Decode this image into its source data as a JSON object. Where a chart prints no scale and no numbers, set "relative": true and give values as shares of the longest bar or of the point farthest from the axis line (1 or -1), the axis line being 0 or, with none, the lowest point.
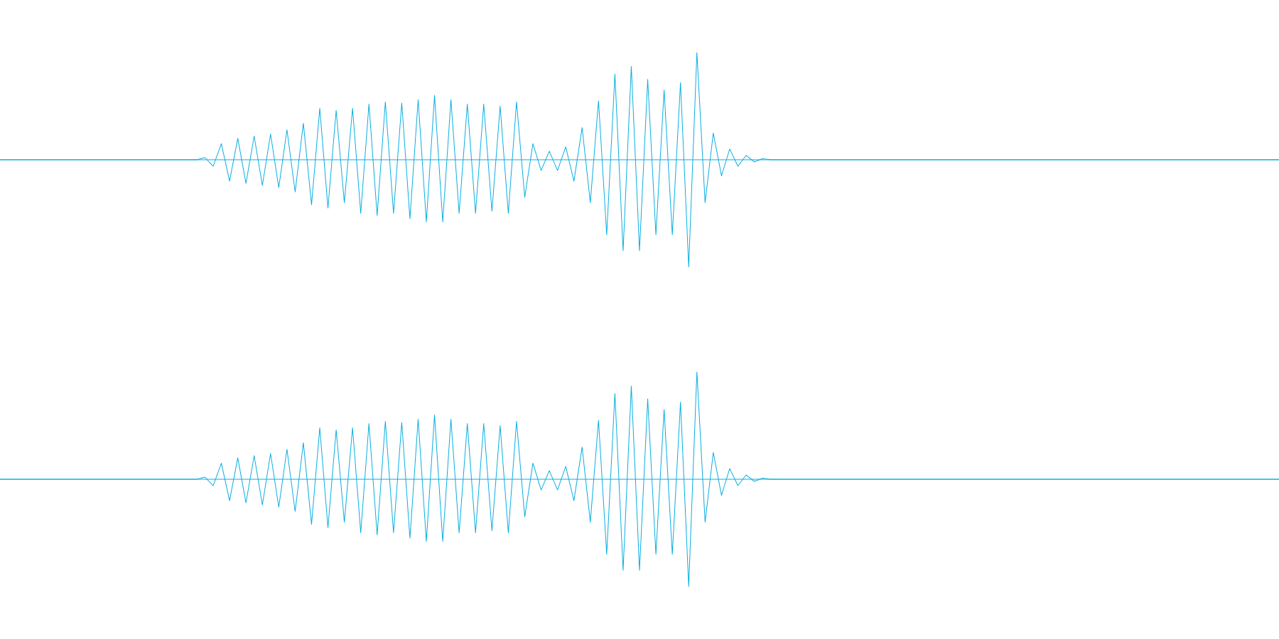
{
  "chart_data": [
    {
      "type": "line",
      "relative": true,
      "categories": [
        null,
        null,
        null,
        null,
        null,
        null,
        null,
        null,
        null,
        null,
        null,
        null,
        null,
        null,
        null,
        null,
        null,
        null,
        null,
        null,
        null,
        null,
        null,
        null,
        null,
        null,
        null,
        null,
        null,
        null,
        null,
        null,
        null,
        null,
        null,
        null,
        null,
        null,
        null,
        null,
        null,
        null,
        null,
        null,
        null,
        null,
        null,
        null,
        null,
        null,
        null,
        null,
        null,
        null,
        null,
        null,
        null,
        null,
        null,
        null,
        null,
        null,
        null,
        null,
        null,
        null,
        null,
        null,
        null,
        null,
        null,
        null,
        null,
        null,
        null,
        null,
        null,
        null,
        null,
        null,
        null,
        null,
        null,
        null,
        null,
        null,
        null,
        null,
        null,
        null,
        null,
        null,
        null,
        null,
        null,
        null,
        null,
        null,
        null,
        null,
        null,
        null,
        null,
        null,
        null,
        null,
        null,
        null,
        null,
        null,
        null,
        null,
        null,
        null,
        null,
        null,
        null,
        null,
        null,
        null,
        null,
        null,
        null,
        null,
        null,
        null,
        null,
        null,
        null,
        null,
        null,
        null,
        null,
        null,
        null,
        null,
        null,
        null,
        null,
        null,
        null,
        null,
        null,
        null,
        null,
        null,
        null,
        null,
        null,
        null,
        null,
        null,
        null,
        null,
        null,
        null,
        null
      ],
      "series": [
        {
          "color": "#08aee2",
          "values": [
            0,
            0,
            0,
            0,
            0,
            0,
            0,
            0,
            0,
            0,
            0,
            0,
            0,
            0,
            0,
            0,
            0,
            0,
            0,
            0,
            0,
            0,
            0,
            0,
            0,
            0.02,
            -0.06,
            0.15,
            -0.2,
            0.2,
            -0.22,
            0.22,
            -0.24,
            0.24,
            -0.26,
            0.28,
            -0.3,
            0.34,
            -0.42,
            0.48,
            -0.45,
            0.46,
            -0.4,
            0.48,
            -0.5,
            0.52,
            -0.52,
            0.54,
            -0.5,
            0.53,
            -0.55,
            0.56,
            -0.58,
            0.6,
            -0.58,
            0.56,
            -0.5,
            0.52,
            -0.5,
            0.52,
            -0.48,
            0.5,
            -0.5,
            0.54,
            -0.35,
            0.15,
            -0.1,
            0.08,
            -0.1,
            0.12,
            -0.2,
            0.3,
            -0.4,
            0.55,
            -0.7,
            0.8,
            -0.85,
            0.87,
            -0.85,
            0.75,
            -0.7,
            0.65,
            -0.7,
            0.72,
            -1.0,
            1.0,
            -0.4,
            0.25,
            -0.15,
            0.1,
            -0.06,
            0.04,
            -0.02,
            0.01,
            0,
            0,
            0,
            0,
            0,
            0,
            0,
            0,
            0,
            0,
            0,
            0,
            0,
            0,
            0,
            0,
            0,
            0,
            0,
            0,
            0,
            0,
            0,
            0,
            0,
            0,
            0,
            0,
            0,
            0,
            0,
            0,
            0,
            0,
            0,
            0,
            0,
            0,
            0,
            0,
            0,
            0,
            0,
            0,
            0,
            0,
            0,
            0,
            0,
            0,
            0,
            0,
            0,
            0,
            0,
            0,
            0,
            0,
            0,
            0,
            0,
            0,
            0
          ]
        }
      ]
    },
    {
      "type": "line",
      "relative": true,
      "categories": [
        null,
        null,
        null,
        null,
        null,
        null,
        null,
        null,
        null,
        null,
        null,
        null,
        null,
        null,
        null,
        null,
        null,
        null,
        null,
        null,
        null,
        null,
        null,
        null,
        null,
        null,
        null,
        null,
        null,
        null,
        null,
        null,
        null,
        null,
        null,
        null,
        null,
        null,
        null,
        null,
        null,
        null,
        null,
        null,
        null,
        null,
        null,
        null,
        null,
        null,
        null,
        null,
        null,
        null,
        null,
        null,
        null,
        null,
        null,
        null,
        null,
        null,
        null,
        null,
        null,
        null,
        null,
        null,
        null,
        null,
        null,
        null,
        null,
        null,
        null,
        null,
        null,
        null,
        null,
        null,
        null,
        null,
        null,
        null,
        null,
        null,
        null,
        null,
        null,
        null,
        null,
        null,
        null,
        null,
        null,
        null,
        null,
        null,
        null,
        null,
        null,
        null,
        null,
        null,
        null,
        null,
        null,
        null,
        null,
        null,
        null,
        null,
        null,
        null,
        null,
        null,
        null,
        null,
        null,
        null,
        null,
        null,
        null,
        null,
        null,
        null,
        null,
        null,
        null,
        null,
        null,
        null,
        null,
        null,
        null,
        null,
        null,
        null,
        null,
        null,
        null,
        null,
        null,
        null,
        null,
        null,
        null,
        null,
        null,
        null,
        null,
        null,
        null,
        null,
        null,
        null,
        null
      ],
      "series": [
        {
          "color": "#08aee2",
          "values": [
            0,
            0,
            0,
            0,
            0,
            0,
            0,
            0,
            0,
            0,
            0,
            0,
            0,
            0,
            0,
            0,
            0,
            0,
            0,
            0,
            0,
            0,
            0,
            0,
            0,
            0.02,
            -0.06,
            0.15,
            -0.2,
            0.2,
            -0.22,
            0.22,
            -0.24,
            0.24,
            -0.26,
            0.28,
            -0.3,
            0.34,
            -0.42,
            0.48,
            -0.45,
            0.46,
            -0.4,
            0.48,
            -0.5,
            0.52,
            -0.52,
            0.54,
            -0.5,
            0.53,
            -0.55,
            0.56,
            -0.58,
            0.6,
            -0.58,
            0.56,
            -0.5,
            0.52,
            -0.5,
            0.52,
            -0.48,
            0.5,
            -0.5,
            0.54,
            -0.35,
            0.15,
            -0.1,
            0.08,
            -0.1,
            0.12,
            -0.2,
            0.3,
            -0.4,
            0.55,
            -0.7,
            0.8,
            -0.85,
            0.87,
            -0.85,
            0.75,
            -0.7,
            0.65,
            -0.7,
            0.72,
            -1.0,
            1.0,
            -0.4,
            0.25,
            -0.15,
            0.1,
            -0.06,
            0.04,
            -0.02,
            0.01,
            0,
            0,
            0,
            0,
            0,
            0,
            0,
            0,
            0,
            0,
            0,
            0,
            0,
            0,
            0,
            0,
            0,
            0,
            0,
            0,
            0,
            0,
            0,
            0,
            0,
            0,
            0,
            0,
            0,
            0,
            0,
            0,
            0,
            0,
            0,
            0,
            0,
            0,
            0,
            0,
            0,
            0,
            0,
            0,
            0,
            0,
            0,
            0,
            0,
            0,
            0,
            0,
            0,
            0,
            0,
            0,
            0,
            0,
            0,
            0,
            0,
            0,
            0
          ]
        }
      ]
    }
  ]
}
